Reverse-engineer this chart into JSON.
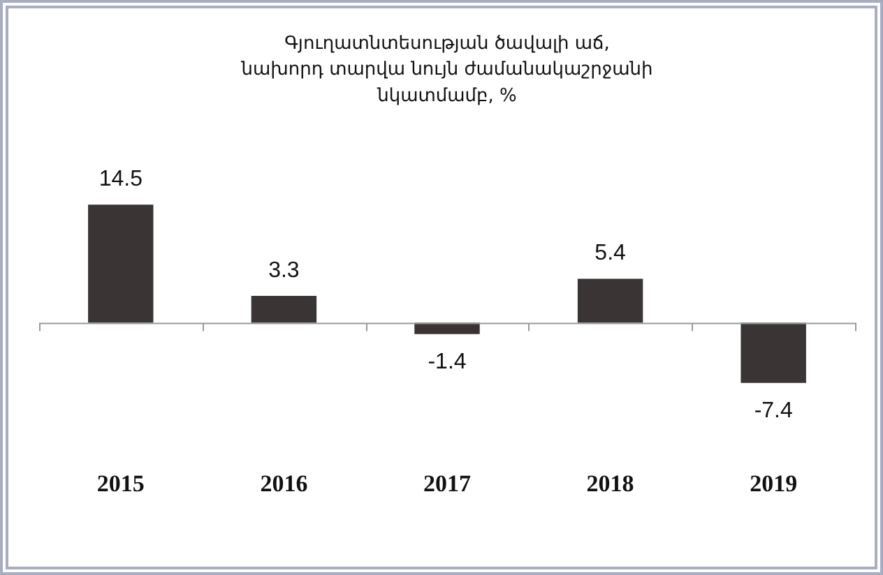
{
  "chart_data": {
    "type": "bar",
    "title": "Գյուղատնտեսության ծավալի աճ,\nնախորդ տարվա նույն ժամանակաշրջանի\nնկատմամբ, %",
    "categories": [
      "2015",
      "2016",
      "2017",
      "2018",
      "2019"
    ],
    "values": [
      14.5,
      3.3,
      -1.4,
      5.4,
      -7.4
    ],
    "color": "#3a3434",
    "data_labels": true
  }
}
